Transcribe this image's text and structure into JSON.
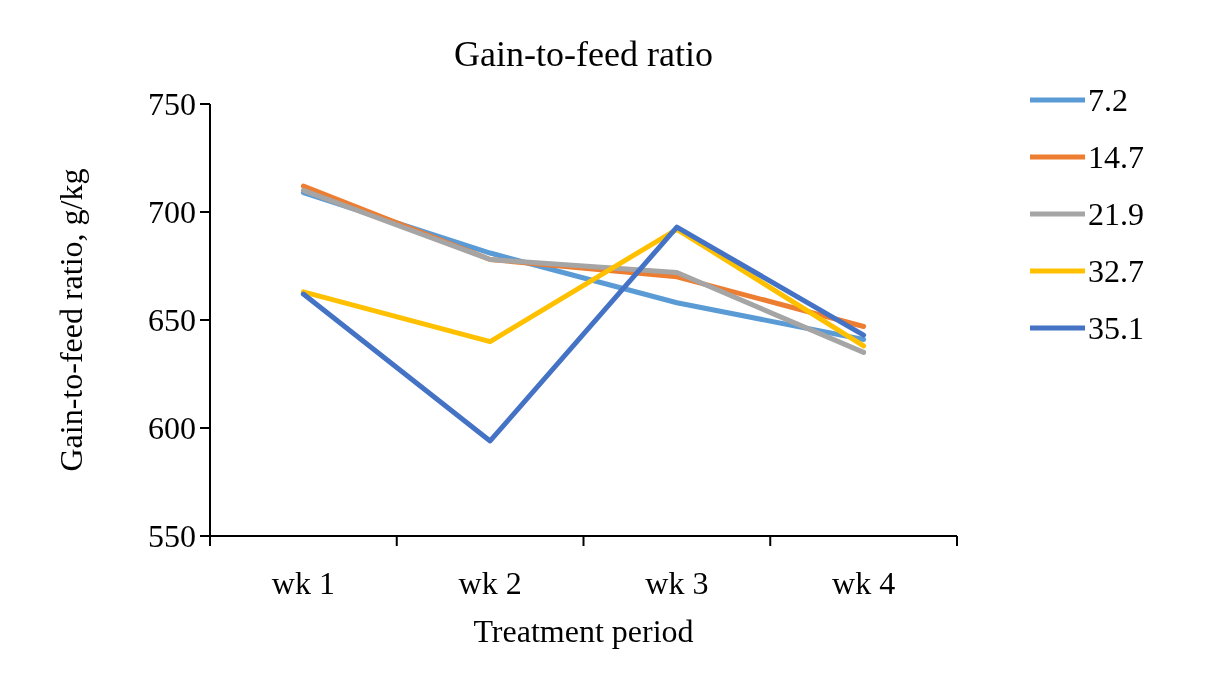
{
  "chart_data": {
    "type": "line",
    "title": "Gain-to-feed ratio",
    "xlabel": "Treatment period",
    "ylabel": "Gain-to-feed ratio, g/kg",
    "categories": [
      "wk 1",
      "wk 2",
      "wk 3",
      "wk 4"
    ],
    "ylim": [
      550,
      750
    ],
    "yticks": [
      550,
      600,
      650,
      700,
      750
    ],
    "grid": false,
    "legend": "right",
    "marker": "none",
    "series": [
      {
        "name": "7.2",
        "color": "#5b9bd5",
        "values": [
          709,
          681,
          658,
          641
        ]
      },
      {
        "name": "14.7",
        "color": "#ed7d31",
        "values": [
          712,
          678,
          670,
          647
        ]
      },
      {
        "name": "21.9",
        "color": "#a5a5a5",
        "values": [
          710,
          678,
          672,
          635
        ]
      },
      {
        "name": "32.7",
        "color": "#ffc000",
        "values": [
          663,
          640,
          692,
          638
        ]
      },
      {
        "name": "35.1",
        "color": "#4472c4",
        "values": [
          662,
          594,
          693,
          643
        ]
      }
    ]
  }
}
